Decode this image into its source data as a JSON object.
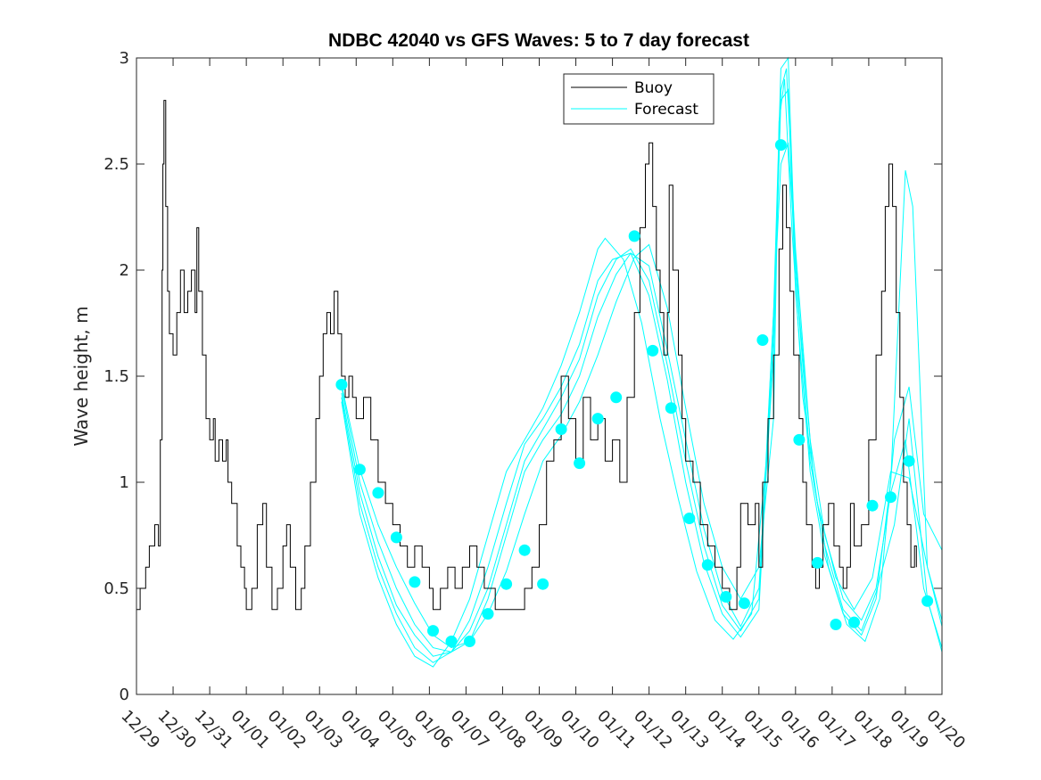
{
  "chart_data": {
    "type": "line",
    "title": "NDBC 42040 vs GFS Waves: 5 to 7 day forecast",
    "xlabel": "",
    "ylabel": "Wave height, m",
    "xlim": [
      0,
      22
    ],
    "ylim": [
      0,
      3
    ],
    "x_tick_labels": [
      "12/29",
      "12/30",
      "12/31",
      "01/01",
      "01/02",
      "01/03",
      "01/04",
      "01/05",
      "01/06",
      "01/07",
      "01/08",
      "01/09",
      "01/10",
      "01/11",
      "01/12",
      "01/13",
      "01/14",
      "01/15",
      "01/16",
      "01/17",
      "01/18",
      "01/19",
      "01/20"
    ],
    "y_ticks": [
      0,
      0.5,
      1,
      1.5,
      2,
      2.5,
      3
    ],
    "y_tick_labels": [
      "0",
      "0.5",
      "1",
      "1.5",
      "2",
      "2.5",
      "3"
    ],
    "legend": {
      "position": "top-right-center",
      "entries": [
        "Buoy",
        "Forecast"
      ]
    },
    "colors": {
      "buoy": "#000000",
      "forecast": "#00ffff",
      "axes": "#262626",
      "background": "#ffffff"
    },
    "buoy": [
      [
        0,
        0.4
      ],
      [
        0.1,
        0.5
      ],
      [
        0.25,
        0.6
      ],
      [
        0.35,
        0.7
      ],
      [
        0.5,
        0.8
      ],
      [
        0.6,
        0.7
      ],
      [
        0.65,
        1.2
      ],
      [
        0.7,
        2.0
      ],
      [
        0.72,
        2.5
      ],
      [
        0.75,
        2.8
      ],
      [
        0.8,
        2.3
      ],
      [
        0.85,
        1.9
      ],
      [
        0.9,
        1.7
      ],
      [
        1.0,
        1.6
      ],
      [
        1.1,
        1.8
      ],
      [
        1.2,
        2.0
      ],
      [
        1.3,
        1.8
      ],
      [
        1.4,
        1.9
      ],
      [
        1.5,
        2.0
      ],
      [
        1.6,
        1.8
      ],
      [
        1.65,
        2.2
      ],
      [
        1.7,
        1.9
      ],
      [
        1.8,
        1.6
      ],
      [
        1.9,
        1.3
      ],
      [
        2.0,
        1.2
      ],
      [
        2.1,
        1.3
      ],
      [
        2.15,
        1.1
      ],
      [
        2.25,
        1.2
      ],
      [
        2.35,
        1.1
      ],
      [
        2.45,
        1.2
      ],
      [
        2.5,
        1.0
      ],
      [
        2.6,
        0.9
      ],
      [
        2.75,
        0.7
      ],
      [
        2.85,
        0.6
      ],
      [
        2.95,
        0.5
      ],
      [
        3.0,
        0.4
      ],
      [
        3.15,
        0.5
      ],
      [
        3.3,
        0.8
      ],
      [
        3.45,
        0.9
      ],
      [
        3.55,
        0.6
      ],
      [
        3.7,
        0.4
      ],
      [
        3.85,
        0.5
      ],
      [
        4.0,
        0.7
      ],
      [
        4.1,
        0.8
      ],
      [
        4.2,
        0.6
      ],
      [
        4.35,
        0.4
      ],
      [
        4.5,
        0.5
      ],
      [
        4.6,
        0.7
      ],
      [
        4.75,
        1.0
      ],
      [
        4.9,
        1.3
      ],
      [
        5.0,
        1.5
      ],
      [
        5.1,
        1.7
      ],
      [
        5.2,
        1.8
      ],
      [
        5.3,
        1.7
      ],
      [
        5.4,
        1.9
      ],
      [
        5.5,
        1.7
      ],
      [
        5.6,
        1.5
      ],
      [
        5.7,
        1.4
      ],
      [
        5.8,
        1.5
      ],
      [
        5.9,
        1.4
      ],
      [
        6.0,
        1.3
      ],
      [
        6.2,
        1.4
      ],
      [
        6.4,
        1.2
      ],
      [
        6.6,
        1.0
      ],
      [
        6.8,
        0.9
      ],
      [
        7.0,
        0.8
      ],
      [
        7.2,
        0.7
      ],
      [
        7.4,
        0.6
      ],
      [
        7.6,
        0.7
      ],
      [
        7.8,
        0.6
      ],
      [
        8.0,
        0.5
      ],
      [
        8.1,
        0.4
      ],
      [
        8.3,
        0.5
      ],
      [
        8.5,
        0.6
      ],
      [
        8.7,
        0.5
      ],
      [
        8.9,
        0.6
      ],
      [
        9.1,
        0.7
      ],
      [
        9.3,
        0.6
      ],
      [
        9.5,
        0.5
      ],
      [
        9.8,
        0.4
      ],
      [
        10.1,
        0.4
      ],
      [
        10.4,
        0.4
      ],
      [
        10.6,
        0.5
      ],
      [
        10.8,
        0.6
      ],
      [
        11.0,
        0.8
      ],
      [
        11.2,
        1.1
      ],
      [
        11.4,
        1.2
      ],
      [
        11.6,
        1.5
      ],
      [
        11.8,
        1.3
      ],
      [
        12.0,
        1.1
      ],
      [
        12.2,
        1.4
      ],
      [
        12.4,
        1.2
      ],
      [
        12.6,
        1.3
      ],
      [
        12.8,
        1.1
      ],
      [
        13.0,
        1.2
      ],
      [
        13.2,
        1.0
      ],
      [
        13.4,
        1.4
      ],
      [
        13.6,
        1.8
      ],
      [
        13.75,
        2.2
      ],
      [
        13.9,
        2.5
      ],
      [
        14.0,
        2.6
      ],
      [
        14.1,
        2.3
      ],
      [
        14.2,
        2.0
      ],
      [
        14.3,
        1.8
      ],
      [
        14.4,
        1.6
      ],
      [
        14.5,
        1.8
      ],
      [
        14.55,
        2.4
      ],
      [
        14.65,
        2.0
      ],
      [
        14.8,
        1.6
      ],
      [
        14.9,
        1.3
      ],
      [
        15.0,
        1.1
      ],
      [
        15.2,
        1.0
      ],
      [
        15.4,
        0.8
      ],
      [
        15.6,
        0.7
      ],
      [
        15.8,
        0.6
      ],
      [
        16.0,
        0.5
      ],
      [
        16.2,
        0.4
      ],
      [
        16.4,
        0.6
      ],
      [
        16.5,
        0.9
      ],
      [
        16.7,
        0.8
      ],
      [
        16.9,
        0.9
      ],
      [
        17.0,
        0.6
      ],
      [
        17.1,
        1.0
      ],
      [
        17.25,
        1.3
      ],
      [
        17.4,
        1.6
      ],
      [
        17.55,
        2.1
      ],
      [
        17.65,
        2.4
      ],
      [
        17.75,
        2.2
      ],
      [
        17.85,
        1.9
      ],
      [
        17.95,
        1.6
      ],
      [
        18.1,
        1.3
      ],
      [
        18.2,
        1.0
      ],
      [
        18.3,
        0.8
      ],
      [
        18.45,
        0.6
      ],
      [
        18.55,
        0.5
      ],
      [
        18.65,
        0.6
      ],
      [
        18.75,
        0.8
      ],
      [
        18.9,
        0.9
      ],
      [
        19.05,
        0.7
      ],
      [
        19.2,
        0.6
      ],
      [
        19.3,
        0.5
      ],
      [
        19.4,
        0.6
      ],
      [
        19.5,
        0.9
      ],
      [
        19.6,
        0.7
      ],
      [
        19.8,
        0.8
      ],
      [
        20.0,
        1.2
      ],
      [
        20.2,
        1.6
      ],
      [
        20.35,
        1.9
      ],
      [
        20.45,
        2.3
      ],
      [
        20.55,
        2.5
      ],
      [
        20.65,
        2.3
      ],
      [
        20.75,
        1.8
      ],
      [
        20.85,
        1.4
      ],
      [
        20.95,
        1.0
      ],
      [
        21.05,
        0.8
      ],
      [
        21.15,
        0.6
      ],
      [
        21.25,
        0.7
      ],
      [
        21.3,
        0.6
      ]
    ],
    "forecast_lines": [
      [
        [
          5.6,
          1.46
        ],
        [
          6.1,
          1.06
        ],
        [
          6.6,
          0.8
        ],
        [
          7.1,
          0.6
        ],
        [
          7.6,
          0.43
        ],
        [
          8.1,
          0.28
        ],
        [
          8.6,
          0.22
        ],
        [
          9.1,
          0.25
        ],
        [
          9.6,
          0.38
        ],
        [
          10.1,
          0.58
        ],
        [
          10.6,
          0.85
        ],
        [
          11.1,
          1.1
        ],
        [
          11.6,
          1.22
        ],
        [
          12.1,
          1.38
        ],
        [
          12.6,
          1.6
        ],
        [
          13.1,
          1.85
        ],
        [
          13.6,
          2.06
        ],
        [
          14.0,
          2.12
        ],
        [
          14.5,
          1.82
        ],
        [
          15.0,
          1.35
        ],
        [
          15.5,
          0.9
        ],
        [
          16.0,
          0.6
        ],
        [
          16.5,
          0.45
        ],
        [
          17.0,
          0.6
        ],
        [
          17.4,
          1.3
        ],
        [
          17.55,
          2.7
        ],
        [
          17.7,
          2.9
        ],
        [
          17.9,
          2.2
        ],
        [
          18.2,
          1.4
        ],
        [
          18.6,
          0.9
        ],
        [
          19.1,
          0.55
        ],
        [
          19.6,
          0.4
        ],
        [
          20.1,
          0.55
        ],
        [
          20.6,
          1.05
        ],
        [
          21.1,
          1.02
        ],
        [
          21.6,
          0.6
        ],
        [
          22.0,
          0.32
        ]
      ],
      [
        [
          5.6,
          1.45
        ],
        [
          6.1,
          1.0
        ],
        [
          6.6,
          0.72
        ],
        [
          7.1,
          0.5
        ],
        [
          7.6,
          0.33
        ],
        [
          8.1,
          0.22
        ],
        [
          8.6,
          0.2
        ],
        [
          9.1,
          0.25
        ],
        [
          9.6,
          0.45
        ],
        [
          10.1,
          0.75
        ],
        [
          10.6,
          1.05
        ],
        [
          11.1,
          1.2
        ],
        [
          11.6,
          1.32
        ],
        [
          12.1,
          1.5
        ],
        [
          12.6,
          1.78
        ],
        [
          13.1,
          1.98
        ],
        [
          13.5,
          2.08
        ],
        [
          14.0,
          2.02
        ],
        [
          14.5,
          1.62
        ],
        [
          15.0,
          1.2
        ],
        [
          15.5,
          0.78
        ],
        [
          16.0,
          0.48
        ],
        [
          16.5,
          0.32
        ],
        [
          17.0,
          0.5
        ],
        [
          17.4,
          1.6
        ],
        [
          17.6,
          2.85
        ],
        [
          17.75,
          2.95
        ],
        [
          18.0,
          2.1
        ],
        [
          18.4,
          1.2
        ],
        [
          18.8,
          0.75
        ],
        [
          19.3,
          0.45
        ],
        [
          19.8,
          0.35
        ],
        [
          20.2,
          0.5
        ],
        [
          20.6,
          0.95
        ],
        [
          21.0,
          1.2
        ],
        [
          21.5,
          0.5
        ],
        [
          22.0,
          0.22
        ]
      ],
      [
        [
          5.6,
          1.42
        ],
        [
          6.1,
          0.95
        ],
        [
          6.6,
          0.65
        ],
        [
          7.1,
          0.42
        ],
        [
          7.6,
          0.28
        ],
        [
          8.1,
          0.18
        ],
        [
          8.6,
          0.2
        ],
        [
          9.1,
          0.3
        ],
        [
          9.6,
          0.5
        ],
        [
          10.1,
          0.8
        ],
        [
          10.6,
          1.1
        ],
        [
          11.1,
          1.25
        ],
        [
          11.6,
          1.4
        ],
        [
          12.1,
          1.58
        ],
        [
          12.6,
          1.88
        ],
        [
          13.1,
          2.05
        ],
        [
          13.5,
          2.1
        ],
        [
          14.0,
          1.95
        ],
        [
          14.5,
          1.55
        ],
        [
          15.0,
          1.1
        ],
        [
          15.5,
          0.7
        ],
        [
          16.0,
          0.42
        ],
        [
          16.5,
          0.3
        ],
        [
          17.0,
          0.45
        ],
        [
          17.4,
          1.8
        ],
        [
          17.6,
          2.95
        ],
        [
          17.8,
          3.0
        ],
        [
          18.0,
          2.0
        ],
        [
          18.4,
          1.1
        ],
        [
          18.8,
          0.7
        ],
        [
          19.3,
          0.4
        ],
        [
          19.8,
          0.3
        ],
        [
          20.2,
          0.48
        ],
        [
          20.7,
          0.8
        ],
        [
          21.1,
          1.3
        ],
        [
          21.6,
          0.45
        ],
        [
          22.0,
          0.2
        ]
      ],
      [
        [
          5.6,
          1.4
        ],
        [
          6.1,
          0.9
        ],
        [
          6.6,
          0.6
        ],
        [
          7.1,
          0.38
        ],
        [
          7.6,
          0.22
        ],
        [
          8.1,
          0.15
        ],
        [
          8.6,
          0.2
        ],
        [
          9.1,
          0.35
        ],
        [
          9.6,
          0.6
        ],
        [
          10.1,
          0.9
        ],
        [
          10.6,
          1.18
        ],
        [
          11.1,
          1.3
        ],
        [
          11.6,
          1.45
        ],
        [
          12.1,
          1.65
        ],
        [
          12.6,
          1.95
        ],
        [
          13.0,
          2.05
        ],
        [
          13.5,
          2.08
        ],
        [
          14.0,
          1.88
        ],
        [
          14.5,
          1.48
        ],
        [
          15.0,
          1.0
        ],
        [
          15.5,
          0.62
        ],
        [
          16.0,
          0.38
        ],
        [
          16.5,
          0.27
        ],
        [
          17.0,
          0.4
        ],
        [
          17.4,
          1.7
        ],
        [
          17.6,
          2.8
        ],
        [
          17.8,
          2.85
        ],
        [
          18.0,
          1.9
        ],
        [
          18.4,
          1.05
        ],
        [
          18.8,
          0.65
        ],
        [
          19.3,
          0.38
        ],
        [
          19.8,
          0.28
        ],
        [
          20.2,
          0.45
        ],
        [
          20.6,
          1.0
        ],
        [
          21.0,
          2.47
        ],
        [
          21.2,
          2.3
        ],
        [
          21.6,
          0.6
        ],
        [
          22.0,
          0.35
        ]
      ],
      [
        [
          5.6,
          1.38
        ],
        [
          6.1,
          0.85
        ],
        [
          6.6,
          0.55
        ],
        [
          7.1,
          0.33
        ],
        [
          7.6,
          0.18
        ],
        [
          8.1,
          0.13
        ],
        [
          8.6,
          0.25
        ],
        [
          9.1,
          0.45
        ],
        [
          9.6,
          0.75
        ],
        [
          10.1,
          1.05
        ],
        [
          10.6,
          1.2
        ],
        [
          11.1,
          1.35
        ],
        [
          11.6,
          1.55
        ],
        [
          12.1,
          1.8
        ],
        [
          12.6,
          2.1
        ],
        [
          12.8,
          2.15
        ],
        [
          13.3,
          2.05
        ],
        [
          13.8,
          1.75
        ],
        [
          14.3,
          1.3
        ],
        [
          14.8,
          0.92
        ],
        [
          15.3,
          0.58
        ],
        [
          15.8,
          0.35
        ],
        [
          16.3,
          0.26
        ],
        [
          16.8,
          0.38
        ],
        [
          17.2,
          1.1
        ],
        [
          17.6,
          2.5
        ],
        [
          17.8,
          2.6
        ],
        [
          18.1,
          1.8
        ],
        [
          18.5,
          1.0
        ],
        [
          18.9,
          0.6
        ],
        [
          19.4,
          0.33
        ],
        [
          19.9,
          0.25
        ],
        [
          20.3,
          0.45
        ],
        [
          20.7,
          1.2
        ],
        [
          21.1,
          1.45
        ],
        [
          21.5,
          0.85
        ],
        [
          22.0,
          0.68
        ]
      ]
    ],
    "forecast_points": [
      [
        5.6,
        1.46
      ],
      [
        6.1,
        1.06
      ],
      [
        6.6,
        0.95
      ],
      [
        7.1,
        0.74
      ],
      [
        7.6,
        0.53
      ],
      [
        8.1,
        0.3
      ],
      [
        8.6,
        0.25
      ],
      [
        9.1,
        0.25
      ],
      [
        9.6,
        0.38
      ],
      [
        10.1,
        0.52
      ],
      [
        10.6,
        0.68
      ],
      [
        11.1,
        0.52
      ],
      [
        11.6,
        1.25
      ],
      [
        12.1,
        1.09
      ],
      [
        12.6,
        1.3
      ],
      [
        13.1,
        1.4
      ],
      [
        13.6,
        2.16
      ],
      [
        14.1,
        1.62
      ],
      [
        14.6,
        1.35
      ],
      [
        15.1,
        0.83
      ],
      [
        15.6,
        0.61
      ],
      [
        16.1,
        0.46
      ],
      [
        16.6,
        0.43
      ],
      [
        17.1,
        1.67
      ],
      [
        17.6,
        2.59
      ],
      [
        18.1,
        1.2
      ],
      [
        18.6,
        0.62
      ],
      [
        19.1,
        0.33
      ],
      [
        19.6,
        0.34
      ],
      [
        20.1,
        0.89
      ],
      [
        20.6,
        0.93
      ],
      [
        21.1,
        1.1
      ],
      [
        21.6,
        0.44
      ]
    ]
  }
}
